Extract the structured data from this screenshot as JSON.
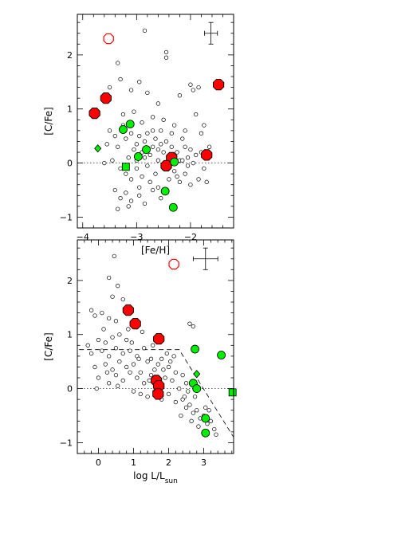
{
  "chart_data": [
    {
      "type": "scatter",
      "xlabel": "[Fe/H]",
      "ylabel": "[C/Fe]",
      "xlim": [
        -4.1,
        -1.2
      ],
      "ylim": [
        -1.2,
        2.75
      ],
      "x_ticks": [
        -4,
        -3,
        -2
      ],
      "y_ticks": [
        -1,
        0,
        1,
        2
      ],
      "x_tick_labels": [
        "−4",
        "−3",
        "−2"
      ],
      "y_tick_labels": [
        "−1",
        "0",
        "1",
        "2"
      ],
      "reference_line_y": 0,
      "error_bar": {
        "x": -1.62,
        "y": 2.4,
        "dx": 0.12,
        "dy": 0.2
      },
      "series": [
        {
          "marker": "small-open-circle",
          "color": "#000000",
          "points": [
            [
              -3.35,
              1.85
            ],
            [
              -2.85,
              2.45
            ],
            [
              -2.45,
              2.05
            ],
            [
              -2.45,
              1.95
            ],
            [
              -3.6,
              1.2
            ],
            [
              -3.5,
              1.4
            ],
            [
              -3.3,
              1.55
            ],
            [
              -3.1,
              1.35
            ],
            [
              -2.95,
              1.5
            ],
            [
              -2.8,
              1.3
            ],
            [
              -2.6,
              1.1
            ],
            [
              -2.2,
              1.25
            ],
            [
              -2.0,
              1.45
            ],
            [
              -1.95,
              1.35
            ],
            [
              -1.85,
              1.4
            ],
            [
              -1.75,
              0.7
            ],
            [
              -3.25,
              0.9
            ],
            [
              -3.05,
              0.95
            ],
            [
              -2.9,
              0.75
            ],
            [
              -2.7,
              0.85
            ],
            [
              -2.5,
              0.8
            ],
            [
              -2.3,
              0.7
            ],
            [
              -2.1,
              0.6
            ],
            [
              -1.9,
              0.9
            ],
            [
              -3.4,
              0.5
            ],
            [
              -3.35,
              0.3
            ],
            [
              -3.2,
              0.45
            ],
            [
              -3.1,
              0.55
            ],
            [
              -3.05,
              0.25
            ],
            [
              -3.0,
              0.35
            ],
            [
              -2.95,
              0.5
            ],
            [
              -2.9,
              0.2
            ],
            [
              -2.85,
              0.4
            ],
            [
              -2.8,
              0.55
            ],
            [
              -2.75,
              0.15
            ],
            [
              -2.7,
              0.3
            ],
            [
              -2.65,
              0.45
            ],
            [
              -2.6,
              0.25
            ],
            [
              -2.55,
              0.35
            ],
            [
              -2.5,
              0.2
            ],
            [
              -2.45,
              0.4
            ],
            [
              -2.4,
              0.1
            ],
            [
              -2.35,
              0.3
            ],
            [
              -2.3,
              0.15
            ],
            [
              -2.2,
              0.05
            ],
            [
              -2.1,
              0.3
            ],
            [
              -2.05,
              0.1
            ],
            [
              -2.0,
              0.25
            ],
            [
              -1.95,
              0.0
            ],
            [
              -1.9,
              0.15
            ],
            [
              -1.8,
              0.2
            ],
            [
              -3.45,
              0.05
            ],
            [
              -3.3,
              -0.1
            ],
            [
              -3.2,
              -0.2
            ],
            [
              -3.1,
              -0.3
            ],
            [
              -3.0,
              -0.1
            ],
            [
              -2.9,
              -0.25
            ],
            [
              -2.8,
              -0.05
            ],
            [
              -2.75,
              -0.35
            ],
            [
              -2.65,
              -0.2
            ],
            [
              -2.6,
              -0.45
            ],
            [
              -2.5,
              -0.1
            ],
            [
              -2.4,
              -0.3
            ],
            [
              -2.3,
              -0.15
            ],
            [
              -2.2,
              -0.35
            ],
            [
              -2.1,
              -0.2
            ],
            [
              -2.0,
              -0.4
            ],
            [
              -1.85,
              -0.3
            ],
            [
              -1.7,
              -0.35
            ],
            [
              -3.4,
              -0.5
            ],
            [
              -3.3,
              -0.65
            ],
            [
              -3.2,
              -0.55
            ],
            [
              -3.1,
              -0.7
            ],
            [
              -2.95,
              -0.6
            ],
            [
              -2.85,
              -0.75
            ],
            [
              -2.7,
              -0.5
            ],
            [
              -2.55,
              -0.65
            ],
            [
              -2.45,
              -0.55
            ],
            [
              -3.35,
              -0.85
            ],
            [
              -3.15,
              -0.8
            ],
            [
              -2.25,
              -0.25
            ],
            [
              -2.15,
              0.45
            ],
            [
              -3.55,
              0.35
            ],
            [
              -3.5,
              0.6
            ],
            [
              -3.25,
              0.7
            ],
            [
              -2.55,
              0.6
            ],
            [
              -2.35,
              0.55
            ],
            [
              -1.8,
              0.55
            ],
            [
              -3.0,
              0.05
            ],
            [
              -2.95,
              -0.45
            ],
            [
              -2.6,
              0.05
            ],
            [
              -2.25,
              0.2
            ],
            [
              -1.75,
              -0.1
            ],
            [
              -3.6,
              0.0
            ],
            [
              -2.05,
              -0.05
            ],
            [
              -2.85,
              0.1
            ],
            [
              -3.15,
              0.1
            ],
            [
              -2.7,
              0.6
            ],
            [
              -2.15,
              0.05
            ],
            [
              -1.65,
              0.3
            ]
          ]
        },
        {
          "marker": "large-filled-octagon",
          "color": "#ff0000",
          "points": [
            [
              -3.78,
              0.92
            ],
            [
              -3.57,
              1.2
            ],
            [
              -1.48,
              1.45
            ],
            [
              -1.7,
              0.15
            ],
            [
              -2.35,
              0.1
            ],
            [
              -2.45,
              -0.05
            ]
          ]
        },
        {
          "marker": "large-open-circle",
          "color": "#ff0000",
          "points": [
            [
              -3.52,
              2.3
            ]
          ]
        },
        {
          "marker": "filled-circle",
          "color": "#00ee00",
          "points": [
            [
              -3.25,
              0.62
            ],
            [
              -3.12,
              0.72
            ],
            [
              -2.97,
              0.12
            ],
            [
              -2.82,
              0.25
            ],
            [
              -2.47,
              -0.52
            ],
            [
              -2.32,
              -0.82
            ],
            [
              -2.3,
              0.02
            ]
          ]
        },
        {
          "marker": "filled-square",
          "color": "#00ee00",
          "points": [
            [
              -3.2,
              -0.07
            ]
          ]
        },
        {
          "marker": "filled-diamond",
          "color": "#00ee00",
          "points": [
            [
              -3.72,
              0.27
            ]
          ]
        }
      ]
    },
    {
      "type": "scatter",
      "xlabel": "log L/L",
      "xlabel_sub": "sun",
      "ylabel": "[C/Fe]",
      "xlim": [
        -0.6,
        3.85
      ],
      "ylim": [
        -1.2,
        2.75
      ],
      "x_ticks": [
        0,
        1,
        2,
        3
      ],
      "y_ticks": [
        -1,
        0,
        1,
        2
      ],
      "x_tick_labels": [
        "0",
        "1",
        "2",
        "3"
      ],
      "y_tick_labels": [
        "−1",
        "0",
        "1",
        "2"
      ],
      "reference_line_y": 0,
      "dashed_boundary": [
        [
          -0.55,
          0.72
        ],
        [
          2.3,
          0.72
        ],
        [
          3.85,
          -0.9
        ]
      ],
      "error_bar": {
        "x": 3.05,
        "y": 2.4,
        "dx": 0.35,
        "dy": 0.2
      },
      "series": [
        {
          "marker": "small-open-circle",
          "color": "#000000",
          "points": [
            [
              0.45,
              2.45
            ],
            [
              0.3,
              2.05
            ],
            [
              0.55,
              1.9
            ],
            [
              0.4,
              1.7
            ],
            [
              0.7,
              1.65
            ],
            [
              -0.2,
              1.45
            ],
            [
              0.1,
              1.4
            ],
            [
              0.3,
              1.3
            ],
            [
              0.5,
              1.25
            ],
            [
              -0.1,
              1.35
            ],
            [
              2.6,
              1.2
            ],
            [
              2.7,
              1.15
            ],
            [
              -0.3,
              0.8
            ],
            [
              0.0,
              0.9
            ],
            [
              0.2,
              0.85
            ],
            [
              0.4,
              0.95
            ],
            [
              0.6,
              1.0
            ],
            [
              -0.2,
              0.65
            ],
            [
              0.1,
              0.7
            ],
            [
              0.3,
              0.6
            ],
            [
              0.5,
              0.75
            ],
            [
              0.7,
              0.65
            ],
            [
              0.9,
              0.7
            ],
            [
              1.1,
              0.6
            ],
            [
              1.3,
              0.75
            ],
            [
              1.5,
              0.55
            ],
            [
              -0.1,
              0.4
            ],
            [
              0.2,
              0.45
            ],
            [
              0.4,
              0.35
            ],
            [
              0.6,
              0.5
            ],
            [
              0.8,
              0.4
            ],
            [
              1.0,
              0.45
            ],
            [
              1.2,
              0.3
            ],
            [
              1.4,
              0.5
            ],
            [
              1.6,
              0.35
            ],
            [
              1.8,
              0.55
            ],
            [
              2.0,
              0.4
            ],
            [
              2.2,
              0.3
            ],
            [
              0.0,
              0.2
            ],
            [
              0.3,
              0.1
            ],
            [
              0.5,
              0.25
            ],
            [
              0.7,
              0.15
            ],
            [
              0.9,
              0.3
            ],
            [
              1.1,
              0.2
            ],
            [
              1.3,
              0.1
            ],
            [
              1.5,
              0.25
            ],
            [
              1.7,
              0.05
            ],
            [
              1.9,
              0.2
            ],
            [
              2.1,
              0.15
            ],
            [
              2.3,
              0.0
            ],
            [
              2.5,
              0.1
            ],
            [
              1.0,
              -0.05
            ],
            [
              1.2,
              -0.1
            ],
            [
              1.4,
              -0.15
            ],
            [
              1.6,
              -0.05
            ],
            [
              1.8,
              -0.2
            ],
            [
              2.0,
              -0.1
            ],
            [
              2.2,
              -0.25
            ],
            [
              2.4,
              -0.2
            ],
            [
              2.5,
              -0.35
            ],
            [
              2.6,
              -0.3
            ],
            [
              2.7,
              -0.45
            ],
            [
              2.8,
              -0.4
            ],
            [
              2.9,
              -0.55
            ],
            [
              3.0,
              -0.5
            ],
            [
              3.1,
              -0.65
            ],
            [
              3.2,
              -0.6
            ],
            [
              3.3,
              -0.75
            ],
            [
              3.35,
              -0.85
            ],
            [
              2.35,
              -0.5
            ],
            [
              2.45,
              -0.15
            ],
            [
              2.65,
              -0.6
            ],
            [
              2.85,
              -0.7
            ],
            [
              3.05,
              -0.35
            ],
            [
              1.95,
              0.65
            ],
            [
              2.05,
              0.5
            ],
            [
              0.85,
              1.1
            ],
            [
              1.25,
              1.05
            ],
            [
              0.15,
              1.1
            ],
            [
              0.95,
              0.85
            ],
            [
              1.55,
              0.8
            ],
            [
              0.55,
              0.05
            ],
            [
              2.15,
              0.6
            ],
            [
              2.4,
              0.25
            ],
            [
              2.55,
              -0.05
            ],
            [
              1.45,
              0.15
            ],
            [
              1.85,
              0.35
            ],
            [
              0.25,
              0.3
            ],
            [
              -0.05,
              0.0
            ],
            [
              2.75,
              -0.15
            ],
            [
              3.15,
              -0.4
            ],
            [
              1.15,
              0.55
            ],
            [
              0.8,
              0.9
            ],
            [
              1.7,
              0.45
            ]
          ]
        },
        {
          "marker": "large-filled-octagon",
          "color": "#ff0000",
          "points": [
            [
              0.85,
              1.45
            ],
            [
              1.05,
              1.2
            ],
            [
              1.72,
              0.92
            ],
            [
              1.65,
              0.15
            ],
            [
              1.72,
              0.05
            ],
            [
              1.7,
              -0.1
            ]
          ]
        },
        {
          "marker": "large-open-circle",
          "color": "#ff0000",
          "points": [
            [
              2.15,
              2.3
            ]
          ]
        },
        {
          "marker": "filled-circle",
          "color": "#00ee00",
          "points": [
            [
              2.75,
              0.73
            ],
            [
              3.5,
              0.62
            ],
            [
              2.7,
              0.1
            ],
            [
              2.8,
              0.0
            ],
            [
              3.05,
              -0.55
            ],
            [
              3.05,
              -0.82
            ]
          ]
        },
        {
          "marker": "filled-square",
          "color": "#00ee00",
          "points": [
            [
              3.82,
              -0.07
            ]
          ]
        },
        {
          "marker": "filled-diamond",
          "color": "#00ee00",
          "points": [
            [
              2.8,
              0.27
            ]
          ]
        }
      ]
    }
  ]
}
